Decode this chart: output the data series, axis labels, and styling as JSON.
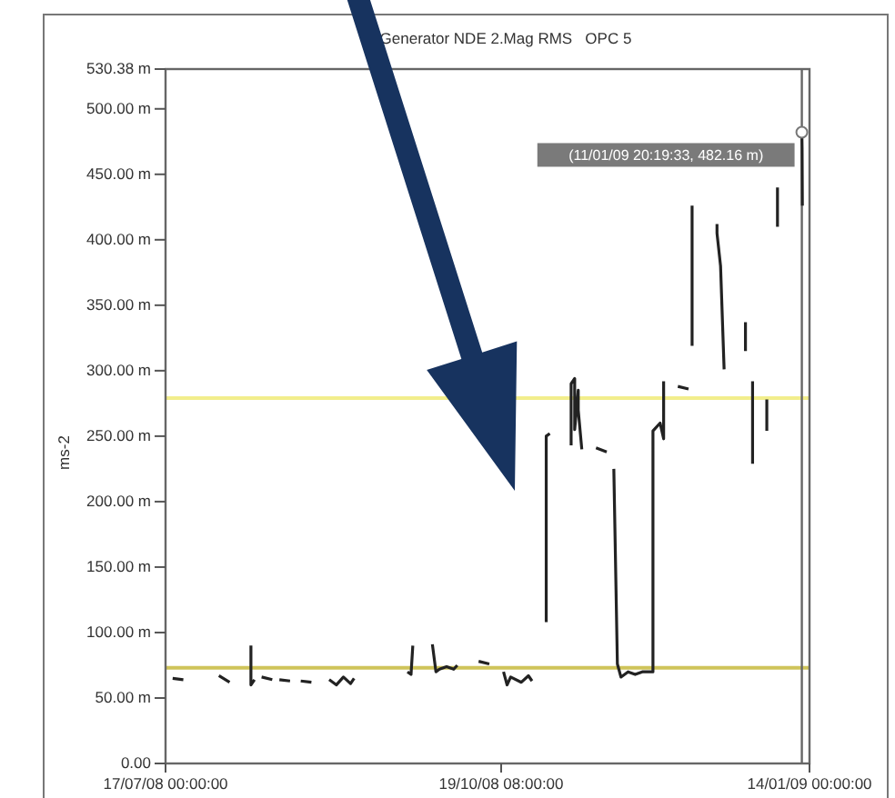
{
  "chart_data": {
    "type": "line",
    "title": "Generator NDE 2.Mag RMS   OPC 5",
    "ylabel": "ms-2",
    "xlim": [
      "2008-07-17T00:00",
      "2009-01-14T00:00"
    ],
    "xticks": [
      {
        "value": "2008-07-17T00:00",
        "label": "17/07/08 00:00:00"
      },
      {
        "value": "2008-10-19T08:00",
        "label": "19/10/08 08:00:00"
      },
      {
        "value": "2009-01-14T00:00",
        "label": "14/01/09 00:00:00"
      }
    ],
    "ylim": [
      0,
      530.38
    ],
    "yticks": [
      {
        "value": 0,
        "label": "0.00"
      },
      {
        "value": 50,
        "label": "50.00 m"
      },
      {
        "value": 100,
        "label": "100.00 m"
      },
      {
        "value": 150,
        "label": "150.00 m"
      },
      {
        "value": 200,
        "label": "200.00 m"
      },
      {
        "value": 250,
        "label": "250.00 m"
      },
      {
        "value": 300,
        "label": "300.00 m"
      },
      {
        "value": 350,
        "label": "350.00 m"
      },
      {
        "value": 400,
        "label": "400.00 m"
      },
      {
        "value": 450,
        "label": "450.00 m"
      },
      {
        "value": 500,
        "label": "500.00 m"
      },
      {
        "value": 530.38,
        "label": "530.38 m"
      }
    ],
    "marker": "none",
    "line_style": "solid",
    "series": [
      {
        "color": "#222222",
        "x": [
          "2008-07-19",
          "2008-07-22",
          "2008-07-25",
          "2008-08-01",
          "2008-08-04",
          "2008-08-06",
          "2008-08-10",
          "2008-08-10",
          "2008-08-11",
          "2008-08-12",
          "2008-08-13",
          "2008-08-16",
          "2008-08-17",
          "2008-08-18",
          "2008-08-21",
          "2008-08-22",
          "2008-08-24",
          "2008-08-27",
          "2008-08-29",
          "2008-09-01",
          "2008-09-03",
          "2008-09-05",
          "2008-09-07",
          "2008-09-08",
          "2008-09-10",
          "2008-09-23",
          "2008-09-24",
          "2008-09-24T12:00",
          "2008-09-27",
          "2008-09-30",
          "2008-10-01",
          "2008-10-02",
          "2008-10-04",
          "2008-10-06",
          "2008-10-07",
          "2008-10-09",
          "2008-10-13",
          "2008-10-16",
          "2008-10-17",
          "2008-10-20",
          "2008-10-21",
          "2008-10-22",
          "2008-10-25",
          "2008-10-27",
          "2008-10-28",
          "2008-10-30",
          "2008-11-01",
          "2008-11-01",
          "2008-11-02",
          "2008-11-04",
          "2008-11-08",
          "2008-11-08",
          "2008-11-09",
          "2008-11-09",
          "2008-11-10",
          "2008-11-10",
          "2008-11-11",
          "2008-11-13",
          "2008-11-15",
          "2008-11-18",
          "2008-11-19",
          "2008-11-20",
          "2008-11-21",
          "2008-11-22",
          "2008-11-24",
          "2008-11-26",
          "2008-11-28",
          "2008-12-01",
          "2008-12-01",
          "2008-12-03",
          "2008-12-04",
          "2008-12-04",
          "2008-12-06",
          "2008-12-08",
          "2008-12-11",
          "2008-12-11T12:00",
          "2008-12-12",
          "2008-12-12",
          "2008-12-12",
          "2008-12-14",
          "2008-12-19",
          "2008-12-19",
          "2008-12-20",
          "2008-12-21",
          "2008-12-24",
          "2008-12-27",
          "2008-12-27",
          "2008-12-28",
          "2008-12-29",
          "2008-12-29",
          "2008-12-31",
          "2009-01-02",
          "2009-01-02",
          "2009-01-04",
          "2009-01-05",
          "2009-01-05",
          "2009-01-08",
          "2009-01-11T20:19",
          "2009-01-11T22:00",
          "2009-01-12"
        ],
        "values": [
          65,
          64,
          null,
          67,
          62,
          null,
          90,
          60,
          64,
          null,
          66,
          64,
          null,
          64,
          63,
          null,
          63,
          62,
          null,
          64,
          60,
          66,
          61,
          65,
          null,
          70,
          68,
          90,
          null,
          91,
          70,
          72,
          74,
          72,
          75,
          null,
          78,
          76,
          null,
          70,
          60,
          66,
          62,
          67,
          63,
          null,
          108,
          250,
          252,
          null,
          243,
          290,
          294,
          255,
          285,
          270,
          240,
          null,
          241,
          238,
          null,
          225,
          76,
          66,
          70,
          68,
          70,
          70,
          254,
          260,
          248,
          292,
          null,
          288,
          286,
          null,
          426,
          419,
          319,
          null,
          412,
          405,
          380,
          301,
          null,
          337,
          315,
          null,
          292,
          229,
          null,
          278,
          254,
          null,
          440,
          410,
          null,
          482.16,
          470,
          426
        ]
      }
    ],
    "ref_lines": [
      {
        "axis": "y",
        "value": 279,
        "color": "#f2ee8c"
      },
      {
        "axis": "y",
        "value": 73,
        "color": "#cfc45a"
      },
      {
        "axis": "x",
        "value": "2009-01-11T20:19",
        "color": "#666666"
      }
    ],
    "annotations": [
      {
        "text": "(11/01/09 20:19:33, 482.16 m)",
        "x": "2009-01-11T20:19",
        "y": 482.16
      }
    ]
  }
}
